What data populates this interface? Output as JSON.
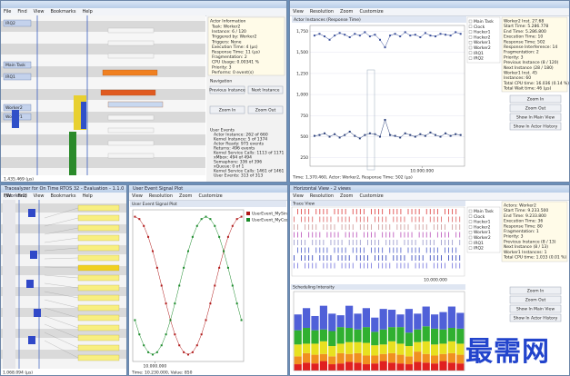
{
  "main_view": {
    "menu": [
      "File",
      "Find",
      "View",
      "Bookmarks",
      "Help"
    ],
    "actors": [
      "IRQ2",
      "Main Task",
      "IRQ1",
      "Worker2",
      "Worker1"
    ],
    "actor_info": {
      "title": "Actor Information",
      "lines": [
        "Task: Worker2",
        "Instance: 6 / 120",
        "Triggered by: Worker2",
        "Triggers: None",
        "Execution Time: 4 (µs)",
        "Response Time: 11 (µs)",
        "Fragmentation: 2",
        "CPU Usage: 0.00341 %",
        "Priority: 3",
        "Performs: 0 event(s)"
      ]
    },
    "navigation": {
      "title": "Navigation",
      "buttons": [
        "Previous Instance",
        "Next Instance",
        "Zoom In",
        "Zoom Out"
      ]
    },
    "user_events": {
      "title": "User Events",
      "lines": [
        "Actor Instance: 262 of 660",
        "Kernel Instance: 5 of 1374",
        "Actor Ready: 975 events",
        "Returns: 496 events",
        "Kernel Service Calls: 1113 of 1171",
        "xMbox: 494 of 494",
        "Semaphore: 336 of 396",
        "xQueue: 0 of 1",
        "Kernel Service Calls: 1461 of 1461",
        "User Events: 313 of 313"
      ]
    },
    "status": "1.435.469 (µs)"
  },
  "response_view": {
    "menu": [
      "View",
      "Resolution",
      "Zoom",
      "Customize"
    ],
    "title": "Actor Instances (Response Time)",
    "chart": {
      "type": "line",
      "x": [
        400000,
        850000,
        1300000,
        1750000,
        2200000,
        2650000,
        3100000,
        3550000,
        4000000,
        4450000,
        4900000,
        5350000,
        5800000,
        6250000,
        6700000,
        7150000,
        7600000,
        8050000,
        8500000,
        8950000,
        9400000,
        9850000,
        10300000,
        10750000,
        11200000,
        11650000,
        12100000,
        12550000,
        13000000,
        13450000
      ],
      "series": [
        {
          "color": "#3a4f9a",
          "values": [
            1700,
            1720,
            1690,
            1650,
            1700,
            1730,
            1710,
            1680,
            1720,
            1700,
            1740,
            1690,
            1710,
            1650,
            1560,
            1700,
            1720,
            1690,
            1740,
            1700,
            1710,
            1680,
            1730,
            1700,
            1690,
            1720,
            1710,
            1700,
            1740,
            1720
          ]
        },
        {
          "color": "#2a3f7a",
          "values": [
            510,
            520,
            540,
            500,
            530,
            490,
            520,
            560,
            510,
            480,
            520,
            540,
            530,
            500,
            700,
            520,
            510,
            490,
            540,
            520,
            500,
            530,
            510,
            550,
            520,
            500,
            540,
            510,
            530,
            520
          ]
        }
      ],
      "xlim": [
        0,
        13800000
      ],
      "xticks": [
        {
          "value": 10000000,
          "label": "10.000.000"
        }
      ],
      "ylim": [
        150,
        1820
      ],
      "yticks": [
        {
          "value": 1750,
          "label": "1,750"
        },
        {
          "value": 1500,
          "label": "1,500"
        },
        {
          "value": 1250,
          "label": "1,250"
        },
        {
          "value": 1000,
          "label": "1,000"
        },
        750,
        500,
        250
      ]
    },
    "legend": [
      "Main Task",
      "Clock",
      "Hacker1",
      "Hacker2",
      "Worker1",
      "Worker2",
      "IRQ1",
      "IRQ2"
    ],
    "info": [
      "Worker2 Inst. 27.68",
      "Start Time: 5.286.778",
      "End Time: 5.286.800",
      "Execution Time: 10",
      "Response Time: 502",
      "Response Interference: 14",
      "Fragmentation: 2",
      "Priority: 3",
      "Previous Instance (8 / 120)",
      "Next Instance (28 / 180)",
      "Worker1 Inst. 45",
      "Instances: 60",
      "Total CPU time: 16.036 (0.14 %)",
      "Total Wait time: 46 (µs)"
    ],
    "buttons": [
      "Zoom In",
      "Zoom Out",
      "Show In Main View",
      "Show In Actor History"
    ],
    "status": "Time: 1.370.460, Actor: Worker2, Response Time: 502 (µs)"
  },
  "trace_view": {
    "title": "Tracealyzer for On Time RTOS 32 - Evaluation - 1.1.0 (Worker2)",
    "menu": [
      "File",
      "Find",
      "View",
      "Bookmarks",
      "Help"
    ],
    "status": "1.068.094 (µs)"
  },
  "signal_view": {
    "title": "User Event Signal Plot",
    "menu": [
      "View",
      "Resolution",
      "Zoom",
      "Customize"
    ],
    "header": "User Event Signal Plot",
    "chart": {
      "type": "line",
      "x": [
        9100000,
        9300000,
        9500000,
        9700000,
        9900000,
        10100000,
        10300000,
        10500000,
        10700000,
        10900000,
        11100000,
        11300000,
        11500000,
        11700000,
        11900000,
        12100000,
        12300000,
        12500000,
        12700000,
        12900000,
        13100000,
        13300000,
        13500000,
        13700000,
        13900000
      ],
      "series": [
        {
          "name": "UserEvent_MySine",
          "color": "#b01818",
          "values": [
            1000,
            966,
            866,
            707,
            500,
            259,
            0,
            -259,
            -500,
            -707,
            -866,
            -966,
            -1000,
            -966,
            -866,
            -707,
            -500,
            -259,
            0,
            259,
            500,
            707,
            866,
            966,
            1000
          ]
        },
        {
          "name": "UserEvent_MyCosine",
          "color": "#1a8a2a",
          "values": [
            -500,
            -707,
            -866,
            -966,
            -1000,
            -966,
            -866,
            -707,
            -500,
            -259,
            0,
            259,
            500,
            707,
            866,
            966,
            1000,
            966,
            866,
            707,
            500,
            259,
            0,
            -259,
            -500
          ]
        }
      ],
      "xlim": [
        9000000,
        14000000
      ],
      "xticks": [
        {
          "value": 10000000,
          "label": "10.000.000"
        }
      ],
      "ylim": [
        -1100,
        1100
      ]
    },
    "status": "Time: 10.230.000, Value: 850"
  },
  "horizontal_view": {
    "title": "Horizontal View - 2 views",
    "menu": [
      "View",
      "Resolution",
      "Zoom",
      "Customize"
    ],
    "trace_header": "Trace View",
    "trace_tick": "10.000.000",
    "intensity_header": "Scheduling Intensity",
    "chart": {
      "type": "bar",
      "categories": [
        null,
        null,
        null,
        null,
        null,
        null,
        null,
        null,
        null,
        null,
        null,
        null,
        null,
        null,
        null,
        null,
        null,
        null,
        null,
        null
      ],
      "ylim": [
        0,
        100
      ],
      "series": [
        {
          "color": "#e02020",
          "values": [
            8,
            10,
            9,
            12,
            8,
            9,
            11,
            10,
            8,
            9,
            12,
            10,
            9,
            8,
            11,
            10,
            9,
            12,
            10,
            9
          ]
        },
        {
          "color": "#f09020",
          "values": [
            10,
            12,
            11,
            9,
            10,
            13,
            10,
            12,
            11,
            10,
            9,
            12,
            11,
            10,
            13,
            11,
            10,
            9,
            12,
            11
          ]
        },
        {
          "color": "#e8e020",
          "values": [
            15,
            12,
            14,
            16,
            13,
            12,
            15,
            14,
            16,
            13,
            12,
            15,
            14,
            13,
            12,
            16,
            14,
            13,
            15,
            14
          ]
        },
        {
          "color": "#30b030",
          "values": [
            18,
            20,
            17,
            15,
            19,
            21,
            18,
            16,
            20,
            17,
            19,
            18,
            21,
            17,
            16,
            19,
            20,
            18,
            17,
            19
          ]
        },
        {
          "color": "#5060d8",
          "values": [
            20,
            25,
            18,
            30,
            22,
            15,
            28,
            20,
            24,
            18,
            26,
            22,
            16,
            30,
            20,
            25,
            18,
            22,
            27,
            20
          ]
        }
      ]
    },
    "legend": [
      "Main Task",
      "Clock",
      "Hacker1",
      "Hacker2",
      "Worker1",
      "Worker2",
      "IRQ1",
      "IRQ2"
    ],
    "info": [
      "Actors: Worker2",
      "Start Time: 9.233.500",
      "End Time: 9.233.800",
      "Execution Time: 36",
      "Response Time: 80",
      "Fragmentation: 1",
      "Priority: 3",
      "Previous Instance (8 / 13)",
      "Next Instance (8 / 13)",
      "Worker1 Instances: 1",
      "Total CPU time: 1.033 (0.01 %)"
    ],
    "buttons": [
      "Zoom In",
      "Zoom Out",
      "Show In Main View",
      "Show In Actor History"
    ]
  },
  "watermark": "最需网"
}
